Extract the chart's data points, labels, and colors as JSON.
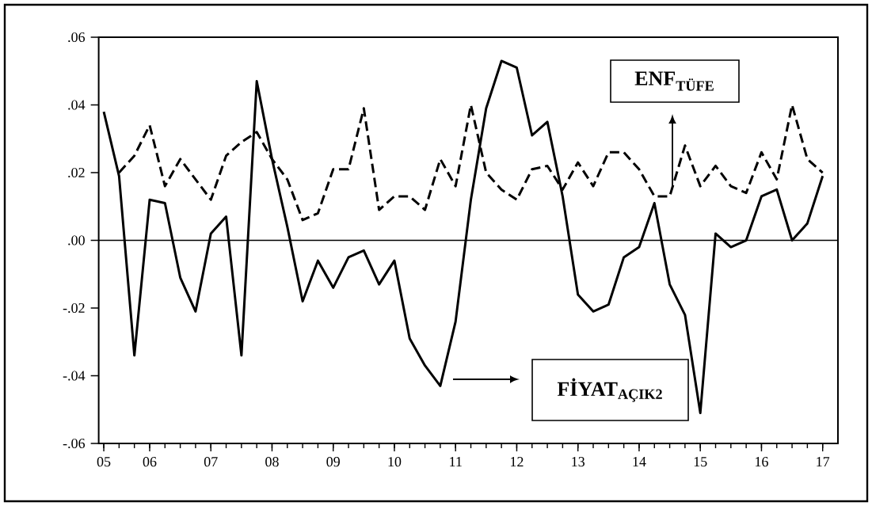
{
  "chart_data": {
    "type": "line",
    "x": [
      "2005-04",
      "2005-07",
      "2005-10",
      "2006-01",
      "2006-04",
      "2006-07",
      "2006-10",
      "2007-01",
      "2007-04",
      "2007-07",
      "2007-10",
      "2008-01",
      "2008-04",
      "2008-07",
      "2008-10",
      "2009-01",
      "2009-04",
      "2009-07",
      "2009-10",
      "2010-01",
      "2010-04",
      "2010-07",
      "2010-10",
      "2011-01",
      "2011-04",
      "2011-07",
      "2011-10",
      "2012-01",
      "2012-04",
      "2012-07",
      "2012-10",
      "2013-01",
      "2013-04",
      "2013-07",
      "2013-10",
      "2014-01",
      "2014-04",
      "2014-07",
      "2014-10",
      "2015-01",
      "2015-04",
      "2015-07",
      "2015-10",
      "2016-01",
      "2016-04",
      "2016-07",
      "2016-10",
      "2017-01"
    ],
    "series": [
      {
        "name": "FİYAT$_{AÇIK2}$",
        "color": "#000000",
        "line_style": "solid",
        "values": [
          0.038,
          0.019,
          -0.034,
          0.012,
          0.011,
          -0.011,
          -0.021,
          0.002,
          0.007,
          -0.034,
          0.047,
          0.024,
          0.004,
          -0.018,
          -0.006,
          -0.014,
          -0.005,
          -0.003,
          -0.013,
          -0.006,
          -0.029,
          -0.037,
          -0.043,
          -0.024,
          0.012,
          0.039,
          0.053,
          0.051,
          0.031,
          0.035,
          0.013,
          -0.016,
          -0.021,
          -0.019,
          -0.005,
          -0.002,
          0.011,
          -0.013,
          -0.022,
          -0.051,
          0.002,
          -0.002,
          0.0,
          0.013,
          0.015,
          0.0,
          0.005,
          0.019
        ]
      },
      {
        "name": "ENF$_{TÜFE}$",
        "color": "#000000",
        "line_style": "dashed",
        "values": [
          null,
          0.02,
          0.025,
          0.034,
          0.016,
          0.024,
          0.018,
          0.012,
          0.025,
          0.029,
          0.032,
          0.024,
          0.018,
          0.006,
          0.008,
          0.021,
          0.021,
          0.039,
          0.009,
          0.013,
          0.013,
          0.009,
          0.024,
          0.016,
          0.04,
          0.02,
          0.015,
          0.012,
          0.021,
          0.022,
          0.015,
          0.023,
          0.016,
          0.026,
          0.026,
          0.021,
          0.013,
          0.013,
          0.028,
          0.016,
          0.022,
          0.016,
          0.014,
          0.026,
          0.018,
          0.04,
          0.024,
          0.02
        ]
      }
    ],
    "xlim": [
      "2005-03",
      "2017-04"
    ],
    "xticks": [
      {
        "value": "2005-04",
        "label": "05"
      },
      {
        "value": "2006-01",
        "label": "06"
      },
      {
        "value": "2007-01",
        "label": "07"
      },
      {
        "value": "2008-01",
        "label": "08"
      },
      {
        "value": "2009-01",
        "label": "09"
      },
      {
        "value": "2010-01",
        "label": "10"
      },
      {
        "value": "2011-01",
        "label": "11"
      },
      {
        "value": "2012-01",
        "label": "12"
      },
      {
        "value": "2013-01",
        "label": "13"
      },
      {
        "value": "2014-01",
        "label": "14"
      },
      {
        "value": "2015-01",
        "label": "15"
      },
      {
        "value": "2016-01",
        "label": "16"
      },
      {
        "value": "2017-01",
        "label": "17"
      }
    ],
    "ylim": [
      -0.06,
      0.06
    ],
    "yticks": [
      {
        "value": -0.06,
        "label": "-.06"
      },
      {
        "value": -0.04,
        "label": "-.04"
      },
      {
        "value": -0.02,
        "label": "-.02"
      },
      {
        "value": 0,
        "label": ".00"
      },
      {
        "value": 0.02,
        "label": ".02"
      },
      {
        "value": 0.04,
        "label": ".04"
      },
      {
        "value": 0.06,
        "label": ".06"
      }
    ],
    "ref_lines": [
      {
        "axis": "y",
        "value": 0,
        "color": "#000000"
      }
    ],
    "marker": "none"
  }
}
